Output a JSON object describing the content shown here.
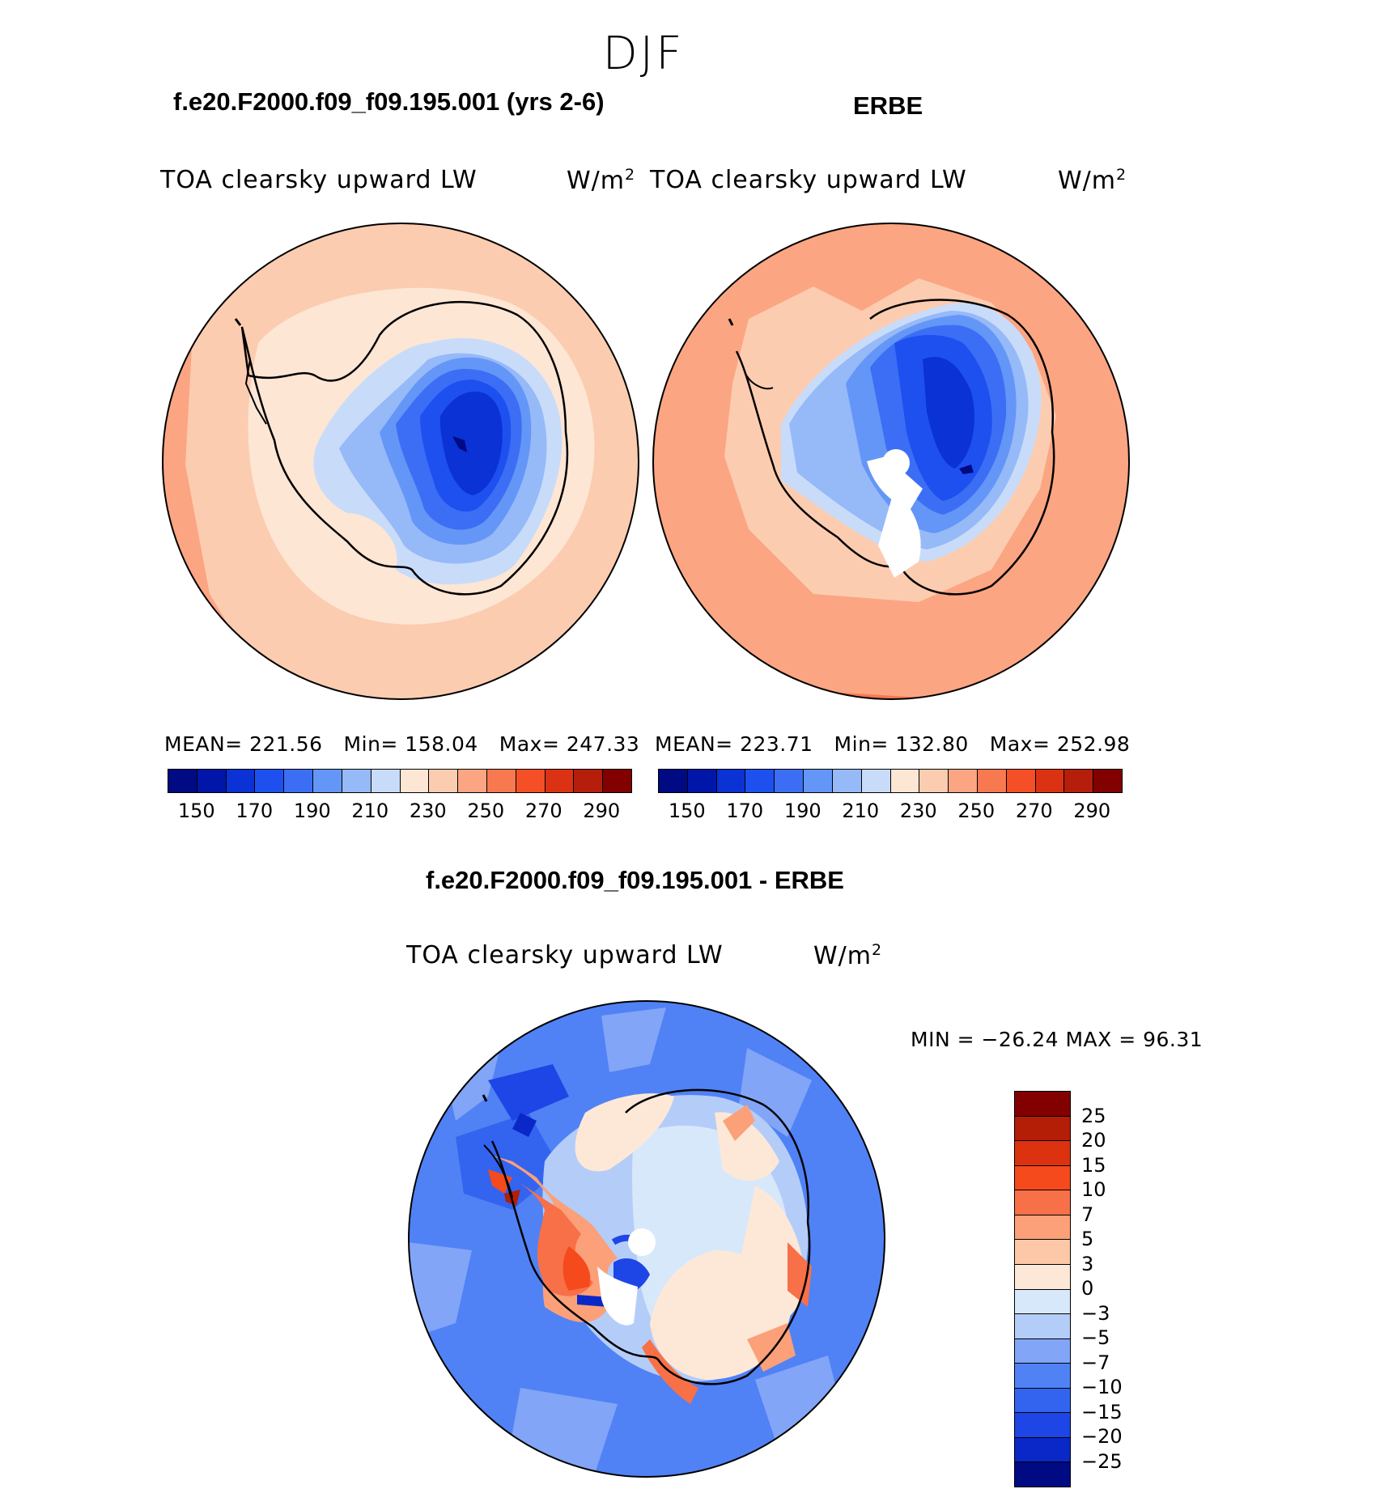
{
  "season": "DJF",
  "panels": {
    "model": {
      "case_title": "f.e20.F2000.f09_f09.195.001 (yrs 2-6)",
      "field_label": "TOA clearsky upward LW",
      "units": "W/m",
      "units_sup": "2",
      "stats": {
        "mean": "MEAN= 221.56",
        "min": "Min= 158.04",
        "max": "Max= 247.33"
      }
    },
    "obs": {
      "case_title": "ERBE",
      "field_label": "TOA clearsky upward LW",
      "units": "W/m",
      "units_sup": "2",
      "stats": {
        "mean": "MEAN= 223.71",
        "min": "Min= 132.80",
        "max": "Max= 252.98"
      }
    },
    "diff": {
      "case_title": "f.e20.F2000.f09_f09.195.001 - ERBE",
      "field_label": "TOA clearsky upward LW",
      "units": "W/m",
      "units_sup": "2",
      "minmax": "MIN = −26.24 MAX =  96.31"
    }
  },
  "abs_colorbar": {
    "colors": [
      "#000a82",
      "#0016a8",
      "#0a32d4",
      "#1e50f0",
      "#3c6ef5",
      "#6496f7",
      "#96b9f8",
      "#c8dcfa",
      "#fde6d4",
      "#fcccb0",
      "#fba582",
      "#f87850",
      "#f54f28",
      "#dc3214",
      "#b41e0a",
      "#820000"
    ],
    "tick_labels": [
      "150",
      "170",
      "190",
      "210",
      "230",
      "250",
      "270",
      "290"
    ]
  },
  "diff_colorbar": {
    "colors": [
      "#000a82",
      "#0a28c8",
      "#1e46e6",
      "#3264f0",
      "#5082f5",
      "#82a5f7",
      "#b4cdf8",
      "#d8e8fb",
      "#fde8d8",
      "#fcc8a8",
      "#fba078",
      "#f87048",
      "#f54a1c",
      "#dc3210",
      "#b41e06",
      "#820000"
    ],
    "tick_labels": [
      "−25",
      "−20",
      "−15",
      "−10",
      "−7",
      "−5",
      "−3",
      "0",
      "3",
      "5",
      "7",
      "10",
      "15",
      "20",
      "25"
    ]
  }
}
